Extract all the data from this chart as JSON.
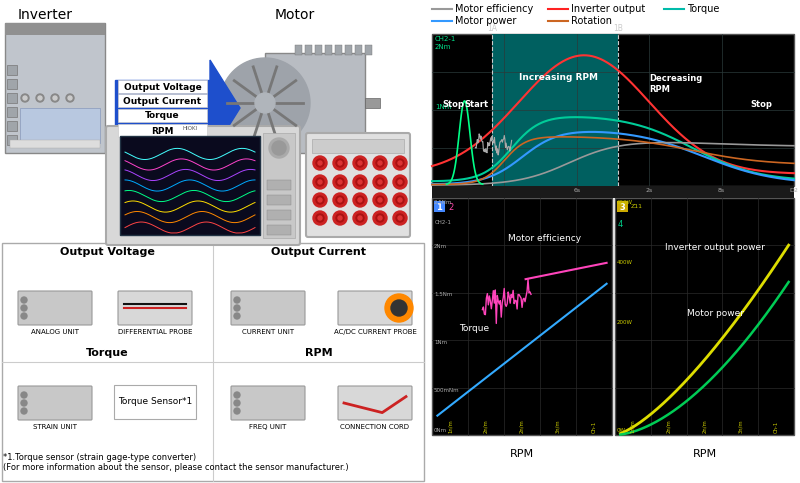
{
  "legend_items": [
    {
      "label": "Motor efficiency",
      "color": "#999999"
    },
    {
      "label": "Inverter output",
      "color": "#ff2222"
    },
    {
      "label": "Torque",
      "color": "#00bbaa"
    },
    {
      "label": "Motor power",
      "color": "#3399ff"
    },
    {
      "label": "Rotation",
      "color": "#cc6622"
    }
  ],
  "arrow_labels": [
    "Output Voltage",
    "Output Current",
    "Torque",
    "RPM"
  ],
  "left_title1": "Inverter",
  "left_title2": "Motor",
  "footnote1": "*1.Torque sensor (strain gage-type converter)",
  "footnote2": "(For more information about the sensor, please contact the sensor manufacturer.)",
  "box_title1": "Output Voltage",
  "box_title2": "Output Current",
  "box_title3": "Torque",
  "box_title4": "RPM",
  "equipment_labels": [
    "ANALOG UNIT",
    "DIFFERENTIAL PROBE",
    "CURRENT UNIT",
    "AC/DC CURRENT PROBE",
    "STRAIN UNIT",
    "Torque Sensor*1",
    "FREQ UNIT",
    "CONNECTION CORD"
  ],
  "top_chart_teal_bg": "#006868",
  "chart_bg": "#000000",
  "grid_color": "#2a2a2a",
  "arrow_color": "#1e4fcc",
  "rpm_label": "RPM",
  "box1_color": "#4488ff",
  "box3_color": "#ccaa00"
}
